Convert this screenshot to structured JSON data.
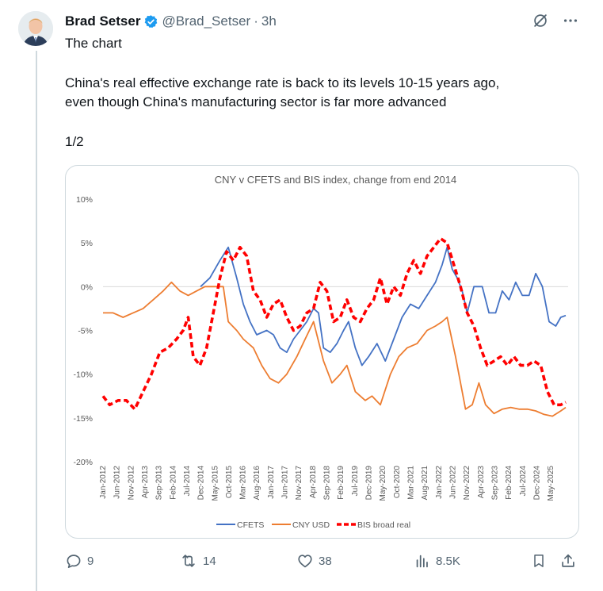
{
  "tweet": {
    "author_name": "Brad Setser",
    "handle": "@Brad_Setser",
    "separator": "·",
    "time": "3h",
    "line1": "The chart",
    "line2": "China's real effective exchange rate is back to its levels 10-15 years ago,",
    "line3": "even though China's manufacturing sector is far more advanced",
    "line4": "1/2"
  },
  "actions": {
    "replies": "9",
    "reposts": "14",
    "likes": "38",
    "views": "8.5K"
  },
  "icons": {
    "verified": "verified-badge-icon",
    "grok": "grok-icon",
    "more": "more-icon",
    "reply": "reply-icon",
    "repost": "repost-icon",
    "like": "heart-icon",
    "views": "views-icon",
    "bookmark": "bookmark-icon",
    "share": "share-icon"
  },
  "colors": {
    "verified": "#1d9bf0",
    "secondary_text": "#536471",
    "cfets": "#4472c4",
    "cny_usd": "#ed7d31",
    "bis": "#ff0000"
  },
  "chart_data": {
    "type": "line",
    "title": "CNY v CFETS and BIS index, change from end 2014",
    "yticks": [
      "10%",
      "5%",
      "0%",
      "-5%",
      "-10%",
      "-15%",
      "-20%"
    ],
    "xticks": [
      "Jan-2012",
      "Jun-2012",
      "Nov-2012",
      "Apr-2013",
      "Sep-2013",
      "Feb-2014",
      "Jul-2014",
      "Dec-2014",
      "May-2015",
      "Oct-2015",
      "Mar-2016",
      "Aug-2016",
      "Jan-2017",
      "Jun-2017",
      "Nov-2017",
      "Apr-2018",
      "Sep-2018",
      "Feb-2019",
      "Jul-2019",
      "Dec-2019",
      "May-2020",
      "Oct-2020",
      "Mar-2021",
      "Aug-2021",
      "Jan-2022",
      "Jun-2022",
      "Nov-2022",
      "Apr-2023",
      "Sep-2023",
      "Feb-2024",
      "Jul-2024",
      "Dec-2024",
      "May-2025"
    ],
    "ylim": [
      -20,
      10
    ],
    "legend_position": "bottom",
    "series": [
      {
        "name": "CFETS",
        "color": "#4472c4",
        "style": "solid",
        "points": [
          [
            2014.92,
            0
          ],
          [
            2015.2,
            1
          ],
          [
            2015.5,
            3
          ],
          [
            2015.75,
            4.5
          ],
          [
            2016.0,
            1
          ],
          [
            2016.2,
            -2
          ],
          [
            2016.4,
            -4
          ],
          [
            2016.6,
            -5.5
          ],
          [
            2016.9,
            -5
          ],
          [
            2017.1,
            -5.5
          ],
          [
            2017.3,
            -7
          ],
          [
            2017.5,
            -7.5
          ],
          [
            2017.7,
            -6
          ],
          [
            2017.9,
            -5
          ],
          [
            2018.1,
            -4
          ],
          [
            2018.3,
            -2.5
          ],
          [
            2018.45,
            -3
          ],
          [
            2018.6,
            -7
          ],
          [
            2018.8,
            -7.5
          ],
          [
            2019.0,
            -6.5
          ],
          [
            2019.2,
            -5
          ],
          [
            2019.35,
            -4
          ],
          [
            2019.55,
            -7
          ],
          [
            2019.75,
            -9
          ],
          [
            2019.95,
            -8
          ],
          [
            2020.2,
            -6.5
          ],
          [
            2020.45,
            -8.5
          ],
          [
            2020.7,
            -6
          ],
          [
            2020.95,
            -3.5
          ],
          [
            2021.2,
            -2
          ],
          [
            2021.45,
            -2.5
          ],
          [
            2021.7,
            -1
          ],
          [
            2021.95,
            0.5
          ],
          [
            2022.15,
            2.5
          ],
          [
            2022.3,
            4.5
          ],
          [
            2022.45,
            2
          ],
          [
            2022.6,
            1
          ],
          [
            2022.75,
            -0.5
          ],
          [
            2022.9,
            -3
          ],
          [
            2023.1,
            0
          ],
          [
            2023.35,
            0
          ],
          [
            2023.55,
            -3
          ],
          [
            2023.75,
            -3
          ],
          [
            2023.95,
            -0.5
          ],
          [
            2024.15,
            -1.5
          ],
          [
            2024.35,
            0.5
          ],
          [
            2024.55,
            -1
          ],
          [
            2024.75,
            -1
          ],
          [
            2024.95,
            1.5
          ],
          [
            2025.15,
            0
          ],
          [
            2025.35,
            -4
          ],
          [
            2025.55,
            -4.5
          ],
          [
            2025.7,
            -3.5
          ],
          [
            2025.85,
            -3.3
          ]
        ]
      },
      {
        "name": "CNY USD",
        "color": "#ed7d31",
        "style": "solid",
        "points": [
          [
            2012.0,
            -3
          ],
          [
            2012.3,
            -3
          ],
          [
            2012.6,
            -3.5
          ],
          [
            2012.9,
            -3
          ],
          [
            2013.2,
            -2.5
          ],
          [
            2013.5,
            -1.5
          ],
          [
            2013.8,
            -0.5
          ],
          [
            2014.05,
            0.5
          ],
          [
            2014.3,
            -0.5
          ],
          [
            2014.55,
            -1
          ],
          [
            2014.8,
            -0.5
          ],
          [
            2015.05,
            0
          ],
          [
            2015.3,
            0
          ],
          [
            2015.6,
            0
          ],
          [
            2015.75,
            -4
          ],
          [
            2016.0,
            -5
          ],
          [
            2016.2,
            -6
          ],
          [
            2016.5,
            -7
          ],
          [
            2016.75,
            -9
          ],
          [
            2017.0,
            -10.5
          ],
          [
            2017.25,
            -11
          ],
          [
            2017.5,
            -10
          ],
          [
            2017.8,
            -8
          ],
          [
            2018.05,
            -6
          ],
          [
            2018.3,
            -4
          ],
          [
            2018.6,
            -8.5
          ],
          [
            2018.85,
            -11
          ],
          [
            2019.1,
            -10
          ],
          [
            2019.3,
            -9
          ],
          [
            2019.55,
            -12
          ],
          [
            2019.85,
            -13
          ],
          [
            2020.05,
            -12.5
          ],
          [
            2020.3,
            -13.5
          ],
          [
            2020.6,
            -10
          ],
          [
            2020.85,
            -8
          ],
          [
            2021.1,
            -7
          ],
          [
            2021.4,
            -6.5
          ],
          [
            2021.7,
            -5
          ],
          [
            2021.95,
            -4.5
          ],
          [
            2022.15,
            -4
          ],
          [
            2022.3,
            -3.5
          ],
          [
            2022.55,
            -8
          ],
          [
            2022.85,
            -14
          ],
          [
            2023.05,
            -13.5
          ],
          [
            2023.25,
            -11
          ],
          [
            2023.45,
            -13.5
          ],
          [
            2023.7,
            -14.5
          ],
          [
            2023.95,
            -14
          ],
          [
            2024.2,
            -13.8
          ],
          [
            2024.45,
            -14
          ],
          [
            2024.7,
            -14
          ],
          [
            2024.95,
            -14.2
          ],
          [
            2025.2,
            -14.6
          ],
          [
            2025.45,
            -14.8
          ],
          [
            2025.7,
            -14.2
          ],
          [
            2025.85,
            -13.8
          ]
        ]
      },
      {
        "name": "BIS broad real",
        "color": "#ff0000",
        "style": "dashed",
        "points": [
          [
            2012.0,
            -12.5
          ],
          [
            2012.2,
            -13.5
          ],
          [
            2012.45,
            -13
          ],
          [
            2012.7,
            -13
          ],
          [
            2012.95,
            -14
          ],
          [
            2013.2,
            -12
          ],
          [
            2013.45,
            -10
          ],
          [
            2013.7,
            -7.5
          ],
          [
            2013.95,
            -7
          ],
          [
            2014.2,
            -6
          ],
          [
            2014.4,
            -5
          ],
          [
            2014.55,
            -3.5
          ],
          [
            2014.7,
            -8
          ],
          [
            2014.9,
            -9
          ],
          [
            2015.1,
            -7
          ],
          [
            2015.3,
            -3
          ],
          [
            2015.5,
            1
          ],
          [
            2015.7,
            4
          ],
          [
            2015.9,
            3
          ],
          [
            2016.1,
            4.5
          ],
          [
            2016.3,
            3.5
          ],
          [
            2016.5,
            -0.5
          ],
          [
            2016.7,
            -1.5
          ],
          [
            2016.9,
            -3.5
          ],
          [
            2017.1,
            -2
          ],
          [
            2017.3,
            -1.5
          ],
          [
            2017.5,
            -3.5
          ],
          [
            2017.7,
            -5
          ],
          [
            2017.9,
            -4.5
          ],
          [
            2018.1,
            -3
          ],
          [
            2018.3,
            -2.5
          ],
          [
            2018.5,
            0.5
          ],
          [
            2018.7,
            -0.5
          ],
          [
            2018.9,
            -4
          ],
          [
            2019.1,
            -3.5
          ],
          [
            2019.3,
            -1.5
          ],
          [
            2019.5,
            -3.5
          ],
          [
            2019.7,
            -4
          ],
          [
            2019.9,
            -2.5
          ],
          [
            2020.1,
            -1.5
          ],
          [
            2020.3,
            1
          ],
          [
            2020.5,
            -2
          ],
          [
            2020.7,
            0
          ],
          [
            2020.9,
            -1
          ],
          [
            2021.1,
            1.5
          ],
          [
            2021.3,
            3
          ],
          [
            2021.5,
            1.5
          ],
          [
            2021.7,
            3.5
          ],
          [
            2021.9,
            4.5
          ],
          [
            2022.1,
            5.5
          ],
          [
            2022.3,
            5
          ],
          [
            2022.5,
            2.5
          ],
          [
            2022.7,
            0
          ],
          [
            2022.9,
            -3
          ],
          [
            2023.1,
            -4.5
          ],
          [
            2023.3,
            -7
          ],
          [
            2023.5,
            -9
          ],
          [
            2023.7,
            -8.5
          ],
          [
            2023.9,
            -8
          ],
          [
            2024.1,
            -9
          ],
          [
            2024.3,
            -8
          ],
          [
            2024.5,
            -9
          ],
          [
            2024.7,
            -9
          ],
          [
            2024.9,
            -8.5
          ],
          [
            2025.1,
            -9
          ],
          [
            2025.3,
            -12
          ],
          [
            2025.5,
            -13.5
          ],
          [
            2025.7,
            -13.5
          ],
          [
            2025.85,
            -13.2
          ]
        ]
      }
    ]
  }
}
